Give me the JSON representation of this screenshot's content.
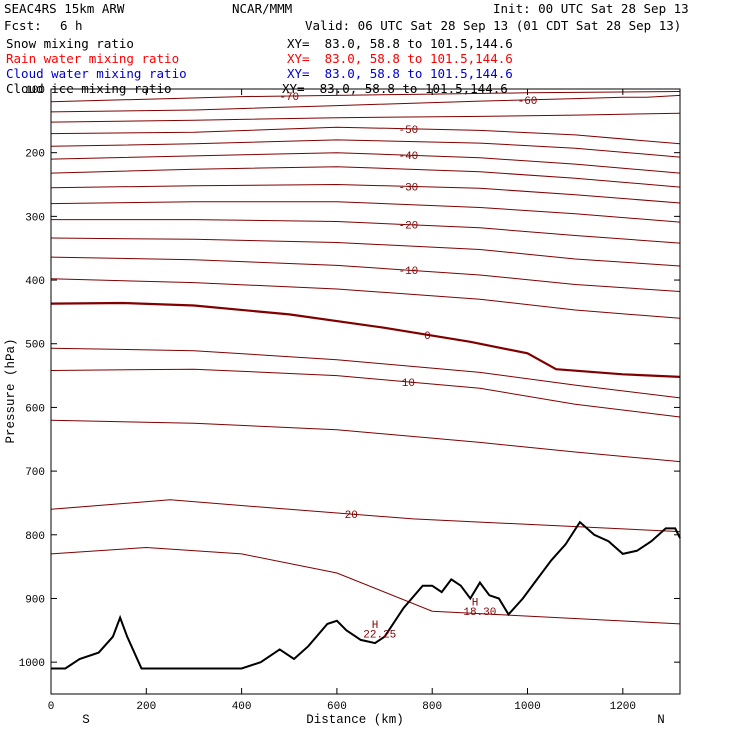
{
  "header": {
    "model": "SEAC4RS 15km ARW",
    "org": "NCAR/MMM",
    "init": "Init: 00 UTC Sat 28 Sep 13",
    "fcst_label": "Fcst:",
    "fcst_value": "6 h",
    "valid": "Valid: 06 UTC Sat 28 Sep 13 (01 CDT Sat 28 Sep 13)"
  },
  "fields": [
    {
      "name": "Snow mixing ratio",
      "xy": "XY=  83.0, 58.8 to 101.5,144.6",
      "color": "#000000"
    },
    {
      "name": "Rain water mixing ratio",
      "xy": "XY=  83.0, 58.8 to 101.5,144.6",
      "color": "#ff0000"
    },
    {
      "name": "Cloud water mixing ratio",
      "xy": "XY=  83.0, 58.8 to 101.5,144.6",
      "color": "#0000cc"
    },
    {
      "name": "Cloud ice mixing ratio",
      "xy": "XY=  83.0, 58.8 to 101.5,144.6",
      "color": "#000000"
    }
  ],
  "colors": {
    "contour": "#800000",
    "terrain": "#000000",
    "frame": "#000000"
  },
  "chart_data": {
    "type": "line",
    "subtype": "vertical cross-section",
    "xlabel": "Distance (km)",
    "ylabel": "Pressure (hPa)",
    "xlim": [
      0,
      1320
    ],
    "ylim": [
      1050,
      100
    ],
    "x_ticks": [
      0,
      200,
      400,
      600,
      800,
      1000,
      1200
    ],
    "y_ticks": [
      1000,
      900,
      800,
      700,
      600,
      500,
      400,
      300,
      200,
      100
    ],
    "x_tick_labels": [
      "0",
      "200",
      "400",
      "600",
      "800",
      "1000",
      "1200"
    ],
    "y_tick_labels": [
      "1000",
      "900",
      "800",
      "700",
      "600",
      "500",
      "400",
      "300",
      "200",
      "100"
    ],
    "endpoints": {
      "left": "S",
      "right": "N"
    },
    "temperature_contours": [
      {
        "level": -60,
        "label": "-60",
        "x": [
          0,
          300,
          600,
          900,
          1100,
          1200,
          1250,
          1320
        ],
        "p": [
          136,
          133,
          126,
          119,
          115,
          113,
          113,
          110
        ]
      },
      {
        "level": -70,
        "label": "-70",
        "x": [
          0,
          200,
          400,
          600,
          800,
          1000,
          1320
        ],
        "p": [
          120,
          116,
          112,
          110,
          108,
          106,
          104
        ]
      },
      {
        "level": -55,
        "label": "",
        "x": [
          0,
          300,
          600,
          900,
          1100,
          1320
        ],
        "p": [
          152,
          149,
          145,
          143,
          141,
          138
        ]
      },
      {
        "level": -50,
        "label": "-50",
        "x": [
          0,
          300,
          600,
          900,
          1100,
          1320
        ],
        "p": [
          170,
          168,
          160,
          165,
          172,
          186
        ]
      },
      {
        "level": -45,
        "label": "",
        "x": [
          0,
          300,
          600,
          900,
          1100,
          1320
        ],
        "p": [
          190,
          186,
          180,
          185,
          193,
          207
        ]
      },
      {
        "level": -40,
        "label": "-40",
        "x": [
          0,
          300,
          600,
          900,
          1100,
          1320
        ],
        "p": [
          210,
          205,
          200,
          208,
          218,
          232
        ]
      },
      {
        "level": -35,
        "label": "",
        "x": [
          0,
          300,
          600,
          900,
          1100,
          1320
        ],
        "p": [
          232,
          226,
          222,
          230,
          240,
          254
        ]
      },
      {
        "level": -30,
        "label": "-30",
        "x": [
          0,
          300,
          600,
          900,
          1100,
          1320
        ],
        "p": [
          255,
          252,
          250,
          256,
          266,
          279
        ]
      },
      {
        "level": -25,
        "label": "",
        "x": [
          0,
          300,
          600,
          900,
          1100,
          1320
        ],
        "p": [
          280,
          277,
          277,
          286,
          296,
          309
        ]
      },
      {
        "level": -20,
        "label": "-20",
        "x": [
          0,
          300,
          600,
          900,
          1100,
          1320
        ],
        "p": [
          305,
          305,
          308,
          318,
          330,
          342
        ]
      },
      {
        "level": -15,
        "label": "",
        "x": [
          0,
          300,
          600,
          900,
          1100,
          1320
        ],
        "p": [
          334,
          336,
          341,
          352,
          367,
          378
        ]
      },
      {
        "level": -10,
        "label": "-10",
        "x": [
          0,
          300,
          600,
          900,
          1100,
          1320
        ],
        "p": [
          364,
          368,
          377,
          392,
          407,
          418
        ]
      },
      {
        "level": -5,
        "label": "",
        "x": [
          0,
          300,
          600,
          900,
          1100,
          1320
        ],
        "p": [
          398,
          404,
          414,
          430,
          447,
          460
        ]
      },
      {
        "level": 0,
        "label": "0",
        "x": [
          0,
          150,
          300,
          500,
          700,
          880,
          1000,
          1060,
          1200,
          1320
        ],
        "p": [
          437,
          436,
          440,
          454,
          475,
          497,
          515,
          540,
          548,
          552
        ]
      },
      {
        "level": 5,
        "label": "",
        "x": [
          0,
          300,
          600,
          900,
          1100,
          1320
        ],
        "p": [
          507,
          511,
          525,
          545,
          565,
          585
        ]
      },
      {
        "level": 10,
        "label": "10",
        "x": [
          0,
          300,
          600,
          900,
          1100,
          1320
        ],
        "p": [
          542,
          540,
          550,
          570,
          595,
          615
        ]
      },
      {
        "level": 15,
        "label": "",
        "x": [
          0,
          300,
          600,
          900,
          1100,
          1320
        ],
        "p": [
          620,
          625,
          635,
          655,
          670,
          685
        ]
      },
      {
        "level": 20,
        "label": "20",
        "x": [
          0,
          250,
          500,
          760,
          900,
          1320
        ],
        "p": [
          760,
          745,
          760,
          775,
          780,
          795
        ]
      },
      {
        "level": 25,
        "label": "",
        "x": [
          0,
          200,
          400,
          600,
          800,
          1320
        ],
        "p": [
          830,
          820,
          830,
          860,
          920,
          940
        ]
      }
    ],
    "annotations": [
      {
        "text": "H",
        "x": 680,
        "p": 940
      },
      {
        "text": "22.25",
        "x": 690,
        "p": 955
      },
      {
        "text": "H",
        "x": 890,
        "p": 905
      },
      {
        "text": "18.30",
        "x": 900,
        "p": 920
      }
    ],
    "terrain": {
      "x": [
        0,
        30,
        60,
        100,
        130,
        145,
        160,
        190,
        240,
        300,
        360,
        400,
        440,
        480,
        510,
        540,
        580,
        600,
        620,
        650,
        680,
        700,
        740,
        780,
        800,
        820,
        840,
        860,
        880,
        900,
        920,
        940,
        960,
        990,
        1020,
        1050,
        1080,
        1110,
        1140,
        1170,
        1200,
        1230,
        1260,
        1290,
        1310,
        1320
      ],
      "p": [
        1010,
        1010,
        995,
        985,
        960,
        930,
        960,
        1010,
        1010,
        1010,
        1010,
        1010,
        1000,
        980,
        995,
        975,
        940,
        935,
        950,
        965,
        970,
        960,
        915,
        880,
        880,
        890,
        870,
        880,
        900,
        875,
        895,
        900,
        925,
        900,
        870,
        840,
        815,
        780,
        800,
        810,
        830,
        825,
        810,
        790,
        790,
        805
      ]
    }
  }
}
